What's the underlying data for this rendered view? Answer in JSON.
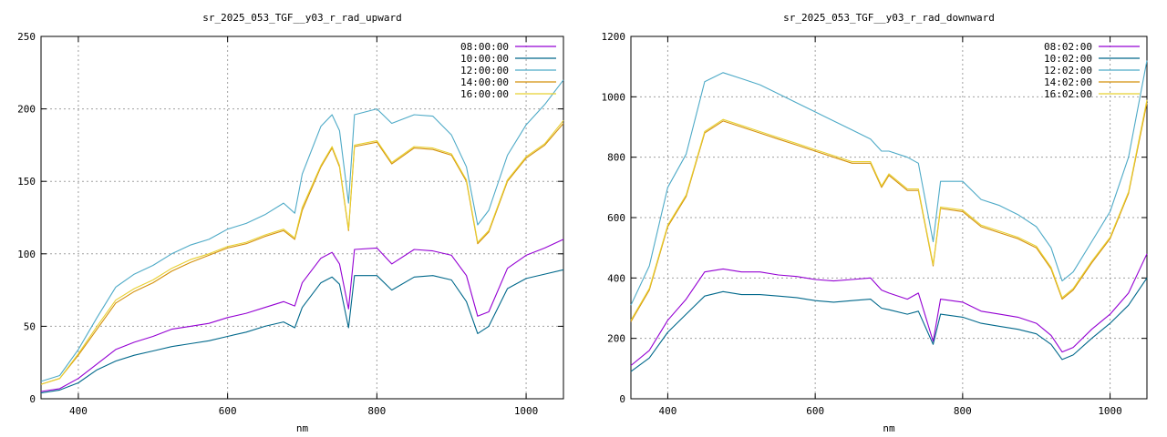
{
  "chart_data": [
    {
      "type": "line",
      "title": "sr_2025_053_TGF__y03_r_rad_upward",
      "xlabel": "nm",
      "ylabel": "",
      "xlim": [
        350,
        1050
      ],
      "ylim": [
        0,
        250
      ],
      "xticks": [
        400,
        600,
        800,
        1000
      ],
      "yticks": [
        0,
        50,
        100,
        150,
        200,
        250
      ],
      "grid": true,
      "legend": "top-right",
      "x": [
        350,
        375,
        400,
        425,
        450,
        475,
        500,
        525,
        550,
        575,
        600,
        625,
        650,
        675,
        690,
        700,
        725,
        740,
        750,
        762,
        770,
        800,
        820,
        850,
        875,
        900,
        920,
        935,
        950,
        975,
        1000,
        1025,
        1050
      ],
      "series": [
        {
          "name": "08:00:00",
          "color": "#9400d3",
          "values": [
            5,
            7,
            14,
            24,
            34,
            39,
            43,
            48,
            50,
            52,
            56,
            59,
            63,
            67,
            64,
            80,
            97,
            101,
            93,
            62,
            103,
            104,
            93,
            103,
            102,
            99,
            85,
            57,
            60,
            90,
            99,
            104,
            110
          ]
        },
        {
          "name": "10:00:00",
          "color": "#00688b",
          "values": [
            4,
            6,
            11,
            20,
            26,
            30,
            33,
            36,
            38,
            40,
            43,
            46,
            50,
            53,
            49,
            63,
            80,
            84,
            79,
            49,
            85,
            85,
            75,
            84,
            85,
            82,
            67,
            45,
            50,
            76,
            83,
            86,
            89
          ]
        },
        {
          "name": "12:00:00",
          "color": "#4eaac7",
          "values": [
            12,
            16,
            34,
            56,
            77,
            86,
            92,
            100,
            106,
            110,
            117,
            121,
            127,
            135,
            128,
            155,
            188,
            196,
            185,
            135,
            196,
            200,
            190,
            196,
            195,
            182,
            160,
            120,
            130,
            168,
            189,
            203,
            220
          ]
        },
        {
          "name": "14:00:00",
          "color": "#d4900a",
          "values": [
            10,
            14,
            30,
            48,
            66,
            74,
            80,
            88,
            94,
            99,
            104,
            107,
            112,
            116,
            110,
            130,
            160,
            173,
            160,
            116,
            174,
            177,
            162,
            173,
            172,
            168,
            150,
            107,
            115,
            150,
            166,
            175,
            190
          ]
        },
        {
          "name": "16:00:00",
          "color": "#e8d030",
          "values": [
            10,
            14,
            31,
            50,
            68,
            76,
            82,
            90,
            96,
            100,
            105,
            108,
            113,
            117,
            111,
            132,
            161,
            174,
            161,
            117,
            175,
            178,
            163,
            174,
            173,
            169,
            151,
            108,
            116,
            151,
            167,
            176,
            192
          ]
        }
      ]
    },
    {
      "type": "line",
      "title": "sr_2025_053_TGF__y03_r_rad_downward",
      "xlabel": "nm",
      "ylabel": "",
      "xlim": [
        350,
        1050
      ],
      "ylim": [
        0,
        1200
      ],
      "xticks": [
        400,
        600,
        800,
        1000
      ],
      "yticks": [
        0,
        200,
        400,
        600,
        800,
        1000,
        1200
      ],
      "grid": true,
      "legend": "top-right",
      "x": [
        350,
        375,
        400,
        425,
        450,
        475,
        500,
        525,
        550,
        575,
        600,
        625,
        650,
        675,
        690,
        700,
        725,
        740,
        760,
        770,
        800,
        825,
        850,
        875,
        900,
        920,
        935,
        950,
        975,
        1000,
        1025,
        1050
      ],
      "series": [
        {
          "name": "08:02:00",
          "color": "#9400d3",
          "values": [
            110,
            160,
            260,
            330,
            420,
            430,
            420,
            420,
            410,
            405,
            395,
            390,
            395,
            400,
            360,
            350,
            330,
            350,
            190,
            330,
            320,
            290,
            280,
            270,
            250,
            210,
            155,
            170,
            230,
            280,
            350,
            480
          ]
        },
        {
          "name": "10:02:00",
          "color": "#00688b",
          "values": [
            90,
            135,
            220,
            280,
            340,
            355,
            345,
            345,
            340,
            335,
            325,
            320,
            325,
            330,
            300,
            295,
            280,
            290,
            180,
            280,
            270,
            250,
            240,
            230,
            215,
            180,
            130,
            145,
            200,
            250,
            310,
            400
          ]
        },
        {
          "name": "12:02:00",
          "color": "#4eaac7",
          "values": [
            310,
            440,
            700,
            810,
            1050,
            1080,
            1060,
            1040,
            1010,
            980,
            950,
            920,
            890,
            860,
            820,
            820,
            800,
            780,
            520,
            720,
            720,
            660,
            640,
            610,
            570,
            500,
            390,
            420,
            520,
            620,
            800,
            1120
          ]
        },
        {
          "name": "14:02:00",
          "color": "#d4900a",
          "values": [
            255,
            360,
            570,
            670,
            880,
            920,
            900,
            880,
            860,
            840,
            820,
            800,
            780,
            780,
            700,
            740,
            690,
            690,
            440,
            630,
            620,
            570,
            550,
            530,
            500,
            430,
            330,
            360,
            450,
            530,
            680,
            980
          ]
        },
        {
          "name": "16:02:00",
          "color": "#e8d030",
          "values": [
            260,
            365,
            575,
            675,
            885,
            925,
            905,
            885,
            865,
            845,
            825,
            805,
            785,
            785,
            705,
            745,
            695,
            695,
            445,
            635,
            625,
            575,
            555,
            535,
            505,
            435,
            335,
            365,
            455,
            535,
            685,
            990
          ]
        }
      ]
    }
  ]
}
